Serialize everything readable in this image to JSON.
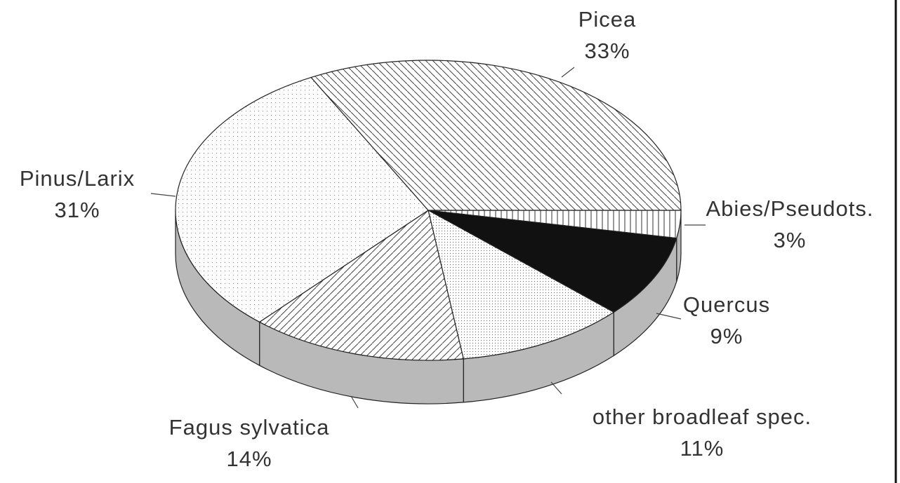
{
  "chart_data": {
    "type": "pie",
    "categories": [
      "Abies/Pseudots.",
      "Quercus",
      "other broadleaf spec.",
      "Fagus sylvatica",
      "Pinus/Larix",
      "Picea"
    ],
    "values": [
      3,
      9,
      11,
      14,
      31,
      33
    ],
    "value_labels": [
      "3%",
      "9%",
      "11%",
      "14%",
      "31%",
      "33%"
    ]
  }
}
